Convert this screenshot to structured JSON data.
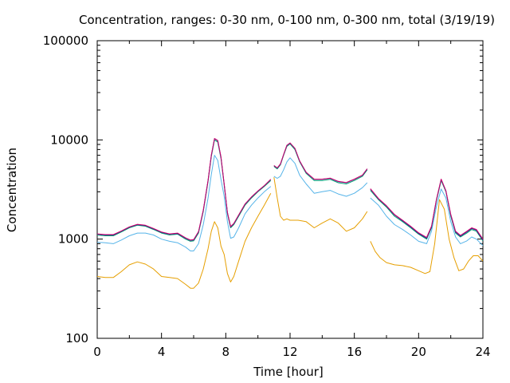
{
  "chart_data": {
    "type": "line",
    "title": "Concentration, ranges: 0-30 nm, 0-100 nm, 0-300 nm, total (3/19/19)",
    "xlabel": "Time [hour]",
    "ylabel": "Concentration",
    "xlim": [
      0,
      24
    ],
    "ylim": [
      100,
      100000
    ],
    "yscale": "log",
    "x_ticks": [
      0,
      4,
      8,
      12,
      16,
      20,
      24
    ],
    "x_tick_labels": [
      "0",
      "4",
      "8",
      "12",
      "16",
      "20",
      "24"
    ],
    "y_ticks": [
      100,
      1000,
      10000,
      100000
    ],
    "y_tick_labels": [
      "100",
      "1000",
      "10000",
      "100000"
    ],
    "grid": false,
    "legend": "none",
    "series": [
      {
        "color": "#e69f00",
        "segments": [
          {
            "x": [
              0,
              0.5,
              1.0,
              1.5,
              2.0,
              2.5,
              3.0,
              3.5,
              4.0,
              4.5,
              5.0,
              5.5,
              5.8,
              6.0,
              6.3,
              6.6,
              6.9,
              7.1,
              7.3,
              7.5,
              7.7,
              7.9,
              8.1,
              8.3,
              8.5,
              8.8,
              9.2,
              9.6,
              10.0,
              10.4,
              10.8
            ],
            "y": [
              420,
              410,
              410,
              470,
              550,
              590,
              560,
              500,
              420,
              410,
              400,
              350,
              320,
              320,
              360,
              500,
              800,
              1200,
              1500,
              1300,
              850,
              700,
              450,
              370,
              420,
              600,
              950,
              1300,
              1700,
              2200,
              2900
            ]
          },
          {
            "x": [
              11.0,
              11.2,
              11.4,
              11.6,
              11.8,
              12.0,
              12.5,
              13.0,
              13.5,
              14.0,
              14.5,
              15.0,
              15.5,
              16.0,
              16.5,
              16.8
            ],
            "y": [
              4200,
              2600,
              1700,
              1550,
              1600,
              1550,
              1550,
              1500,
              1300,
              1450,
              1600,
              1450,
              1200,
              1300,
              1600,
              1900
            ]
          },
          {
            "x": [
              17.0,
              17.3,
              17.6,
              18.0,
              18.5,
              19.0,
              19.5,
              20.0,
              20.4,
              20.7,
              21.0,
              21.3,
              21.6,
              21.9,
              22.2,
              22.5,
              22.8,
              23.1,
              23.4,
              23.7,
              24.0
            ],
            "y": [
              950,
              750,
              650,
              580,
              550,
              540,
              520,
              480,
              450,
              470,
              900,
              2500,
              2000,
              1000,
              650,
              480,
              500,
              600,
              680,
              680,
              600
            ]
          }
        ]
      },
      {
        "color": "#56b4e9",
        "segments": [
          {
            "x": [
              0,
              0.5,
              1.0,
              1.5,
              2.0,
              2.5,
              3.0,
              3.5,
              4.0,
              4.5,
              5.0,
              5.5,
              5.8,
              6.0,
              6.3,
              6.6,
              6.9,
              7.1,
              7.3,
              7.5,
              7.7,
              7.9,
              8.1,
              8.3,
              8.5,
              8.8,
              9.2,
              9.6,
              10.0,
              10.4,
              10.8
            ],
            "y": [
              930,
              920,
              900,
              980,
              1080,
              1150,
              1150,
              1100,
              1000,
              950,
              920,
              830,
              760,
              760,
              900,
              1400,
              2600,
              4500,
              7000,
              6200,
              4000,
              2700,
              1500,
              1020,
              1050,
              1300,
              1800,
              2200,
              2600,
              3000,
              3400
            ]
          },
          {
            "x": [
              11.0,
              11.2,
              11.4,
              11.6,
              11.8,
              12.0,
              12.3,
              12.6,
              13.0,
              13.5,
              14.0,
              14.5,
              15.0,
              15.5,
              16.0,
              16.5,
              16.8
            ],
            "y": [
              4300,
              4100,
              4300,
              5000,
              6000,
              6600,
              5800,
              4400,
              3600,
              2900,
              3000,
              3100,
              2850,
              2700,
              2900,
              3300,
              3700
            ]
          },
          {
            "x": [
              17.0,
              17.5,
              18.0,
              18.5,
              19.0,
              19.5,
              20.0,
              20.5,
              20.8,
              21.1,
              21.4,
              21.7,
              22.0,
              22.3,
              22.6,
              23.0,
              23.3,
              23.6,
              24.0
            ],
            "y": [
              2600,
              2200,
              1700,
              1400,
              1250,
              1100,
              950,
              900,
              1200,
              2100,
              3200,
              2600,
              1500,
              1050,
              900,
              960,
              1050,
              1000,
              860
            ]
          }
        ]
      },
      {
        "color": "#009e73",
        "segments": [
          {
            "x": [
              0,
              0.5,
              1.0,
              1.5,
              2.0,
              2.5,
              3.0,
              3.5,
              4.0,
              4.5,
              5.0,
              5.5,
              5.8,
              6.0,
              6.3,
              6.6,
              6.9,
              7.1,
              7.3,
              7.5,
              7.7,
              7.9,
              8.1,
              8.3,
              8.5,
              8.8,
              9.2,
              9.6,
              10.0,
              10.4,
              10.8
            ],
            "y": [
              1100,
              1080,
              1080,
              1180,
              1300,
              1380,
              1350,
              1250,
              1150,
              1100,
              1120,
              1000,
              950,
              960,
              1150,
              1900,
              3800,
              6800,
              10000,
              9500,
              6500,
              3500,
              1800,
              1300,
              1400,
              1700,
              2200,
              2600,
              3000,
              3400,
              3900
            ]
          },
          {
            "x": [
              11.0,
              11.2,
              11.4,
              11.6,
              11.8,
              12.0,
              12.3,
              12.6,
              13.0,
              13.5,
              14.0,
              14.5,
              15.0,
              15.5,
              16.0,
              16.5,
              16.8
            ],
            "y": [
              5400,
              5100,
              5600,
              7000,
              8600,
              9100,
              8000,
              6000,
              4600,
              3900,
              3900,
              4000,
              3700,
              3600,
              3900,
              4300,
              5000
            ]
          },
          {
            "x": [
              17.0,
              17.5,
              18.0,
              18.5,
              19.0,
              19.5,
              20.0,
              20.5,
              20.8,
              21.1,
              21.4,
              21.7,
              22.0,
              22.3,
              22.6,
              23.0,
              23.3,
              23.6,
              24.0
            ],
            "y": [
              3100,
              2500,
              2100,
              1700,
              1500,
              1300,
              1120,
              1000,
              1300,
              2400,
              3900,
              3000,
              1700,
              1150,
              1050,
              1150,
              1250,
              1200,
              960
            ]
          }
        ]
      },
      {
        "color": "#1f2a8c",
        "segments": [
          {
            "x": [
              0,
              0.5,
              1.0,
              1.5,
              2.0,
              2.5,
              3.0,
              3.5,
              4.0,
              4.5,
              5.0,
              5.5,
              5.8,
              6.0,
              6.3,
              6.6,
              6.9,
              7.1,
              7.3,
              7.5,
              7.7,
              7.9,
              8.1,
              8.3,
              8.5,
              8.8,
              9.2,
              9.6,
              10.0,
              10.4,
              10.8
            ],
            "y": [
              1120,
              1100,
              1100,
              1200,
              1320,
              1400,
              1370,
              1270,
              1170,
              1120,
              1140,
              1020,
              970,
              980,
              1180,
              1950,
              3900,
              7000,
              10300,
              9800,
              6700,
              3600,
              1850,
              1330,
              1430,
              1740,
              2250,
              2650,
              3050,
              3450,
              4000
            ]
          },
          {
            "x": [
              11.0,
              11.2,
              11.4,
              11.6,
              11.8,
              12.0,
              12.3,
              12.6,
              13.0,
              13.5,
              14.0,
              14.5,
              15.0,
              15.5,
              16.0,
              16.5,
              16.8
            ],
            "y": [
              5500,
              5200,
              5700,
              7100,
              8800,
              9300,
              8200,
              6100,
              4700,
              4000,
              4000,
              4100,
              3800,
              3700,
              4000,
              4400,
              5100
            ]
          },
          {
            "x": [
              17.0,
              17.5,
              18.0,
              18.5,
              19.0,
              19.5,
              20.0,
              20.5,
              20.8,
              21.1,
              21.4,
              21.7,
              22.0,
              22.3,
              22.6,
              23.0,
              23.3,
              23.6,
              24.0
            ],
            "y": [
              3200,
              2550,
              2150,
              1750,
              1530,
              1330,
              1140,
              1020,
              1330,
              2450,
              4000,
              3050,
              1750,
              1180,
              1070,
              1180,
              1280,
              1230,
              980
            ]
          }
        ]
      },
      {
        "color": "#d1006f",
        "segments": [
          {
            "x": [
              0,
              0.5,
              1.0,
              1.5,
              2.0,
              2.5,
              3.0,
              3.5,
              4.0,
              4.5,
              5.0,
              5.5,
              5.8,
              6.0,
              6.3,
              6.6,
              6.9,
              7.1,
              7.3,
              7.5,
              7.7,
              7.9,
              8.1,
              8.3,
              8.5,
              8.8,
              9.2,
              9.6,
              10.0,
              10.4,
              10.8
            ],
            "y": [
              1130,
              1110,
              1110,
              1210,
              1330,
              1410,
              1380,
              1280,
              1180,
              1130,
              1150,
              1030,
              980,
              990,
              1190,
              1960,
              3920,
              7050,
              10350,
              9850,
              6750,
              3620,
              1860,
              1340,
              1440,
              1750,
              2260,
              2660,
              3060,
              3460,
              4010
            ]
          },
          {
            "x": [
              11.0,
              11.2,
              11.4,
              11.6,
              11.8,
              12.0,
              12.3,
              12.6,
              13.0,
              13.5,
              14.0,
              14.5,
              15.0,
              15.5,
              16.0,
              16.5,
              16.8
            ],
            "y": [
              5520,
              5220,
              5720,
              7120,
              8820,
              9320,
              8220,
              6120,
              4720,
              4020,
              4020,
              4120,
              3820,
              3720,
              4020,
              4420,
              5120
            ]
          },
          {
            "x": [
              17.0,
              17.5,
              18.0,
              18.5,
              19.0,
              19.5,
              20.0,
              20.5,
              20.8,
              21.1,
              21.4,
              21.7,
              22.0,
              22.3,
              22.6,
              23.0,
              23.3,
              23.6,
              24.0
            ],
            "y": [
              3220,
              2570,
              2170,
              1770,
              1550,
              1350,
              1160,
              1040,
              1350,
              2470,
              4020,
              3070,
              1770,
              1200,
              1090,
              1200,
              1300,
              1250,
              1000
            ]
          }
        ]
      }
    ]
  }
}
